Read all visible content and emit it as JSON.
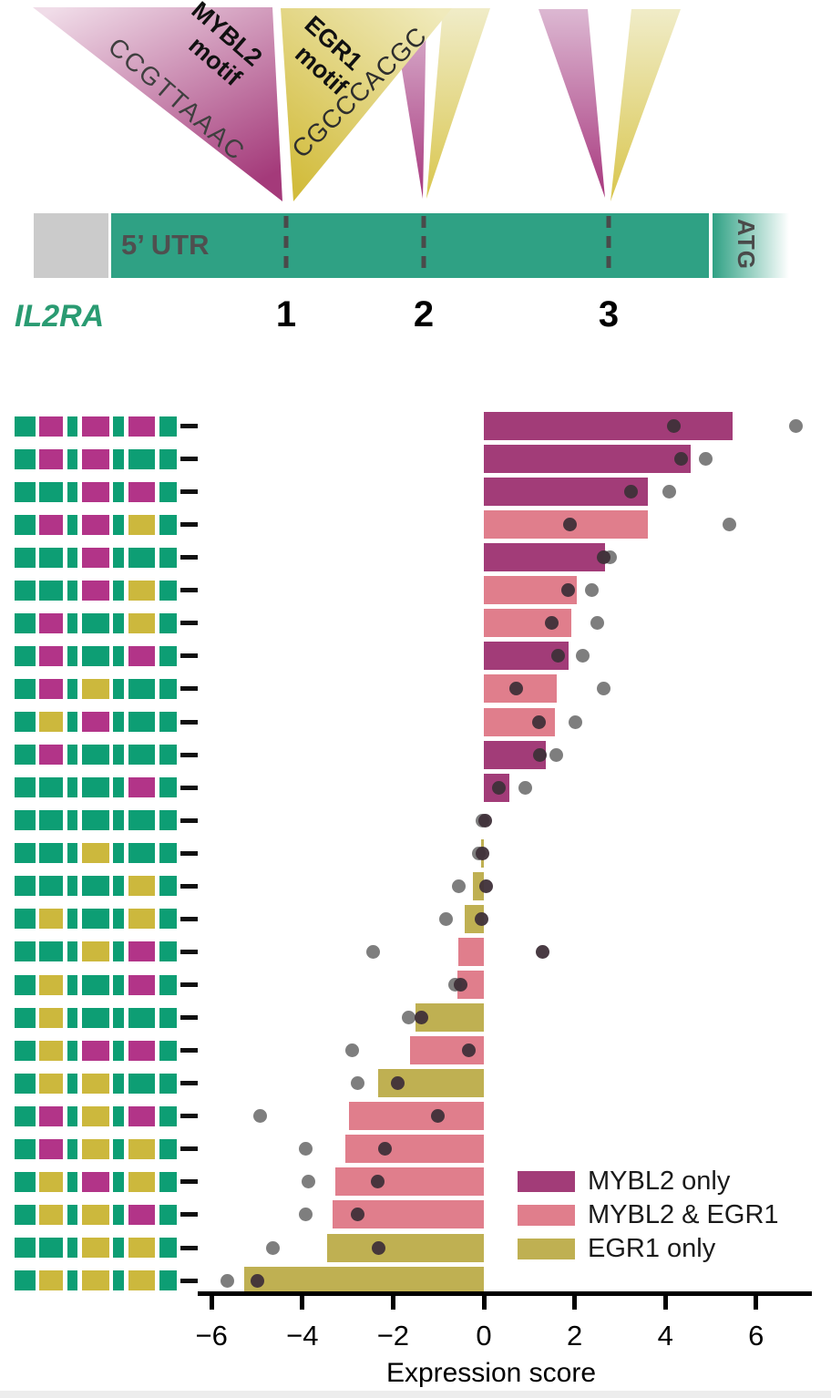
{
  "gene_diagram": {
    "gene_label": "IL2RA",
    "utr_label": "5’ UTR",
    "atg_label": "ATG",
    "positions": [
      "1",
      "2",
      "3"
    ],
    "mybl2_motif": {
      "line1": "MYBL2",
      "line2": "motif",
      "sequence": "CCGTTAAAC"
    },
    "egr1_motif": {
      "line1": "EGR1",
      "line2": "motif",
      "sequence": "CGCCCACGC"
    },
    "colors": {
      "utr_green": "#2fa184",
      "upstream_gray": "#cbcbcb",
      "dash_gray": "#4a4a4a",
      "label_gray": "#4f4f4f",
      "gene_green": "#2a9b72",
      "mybl2_light": "#f0dce8",
      "mybl2_dark": "#a43a7a",
      "egr1_light": "#f0eabc",
      "egr1_dark": "#d2bc3c"
    }
  },
  "chart_data": {
    "type": "bar",
    "orientation": "horizontal",
    "xlabel": "Expression score",
    "xlim": [
      -6.3,
      7.2
    ],
    "x_ticks": [
      -6,
      -4,
      -2,
      0,
      2,
      4,
      6
    ],
    "grid": false,
    "legend_position": "bottom-right",
    "legend": [
      {
        "label": "MYBL2 only",
        "color": "#a23c78"
      },
      {
        "label": "MYBL2 & EGR1",
        "color": "#e07e8c"
      },
      {
        "label": "EGR1 only",
        "color": "#bfb052"
      }
    ],
    "glyph_colors": {
      "G": "#0d9e74",
      "M": "#b23488",
      "Y": "#ccb83d"
    },
    "dot_colors": {
      "dark": "#3f3039",
      "gray": "#777777"
    },
    "rows": [
      {
        "pattern": [
          "M",
          "M",
          "M"
        ],
        "category": "MYBL2 only",
        "bar": 5.48,
        "dots": {
          "dark": 4.18,
          "gray": 6.87
        }
      },
      {
        "pattern": [
          "M",
          "M",
          "G"
        ],
        "category": "MYBL2 only",
        "bar": 4.56,
        "dots": {
          "dark": 4.35,
          "gray": 4.88
        }
      },
      {
        "pattern": [
          "G",
          "M",
          "M"
        ],
        "category": "MYBL2 only",
        "bar": 3.62,
        "dots": {
          "dark": 3.25,
          "gray": 4.09
        }
      },
      {
        "pattern": [
          "M",
          "M",
          "Y"
        ],
        "category": "MYBL2 & EGR1",
        "bar": 3.61,
        "dots": {
          "dark": 1.9,
          "gray": 5.41
        }
      },
      {
        "pattern": [
          "G",
          "M",
          "G"
        ],
        "category": "MYBL2 only",
        "bar": 2.67,
        "dots": {
          "dark": 2.64,
          "gray": 2.78
        }
      },
      {
        "pattern": [
          "G",
          "M",
          "Y"
        ],
        "category": "MYBL2 & EGR1",
        "bar": 2.05,
        "dots": {
          "dark": 1.85,
          "gray": 2.37
        }
      },
      {
        "pattern": [
          "M",
          "G",
          "Y"
        ],
        "category": "MYBL2 & EGR1",
        "bar": 1.93,
        "dots": {
          "dark": 1.5,
          "gray": 2.49
        }
      },
      {
        "pattern": [
          "M",
          "G",
          "M"
        ],
        "category": "MYBL2 only",
        "bar": 1.86,
        "dots": {
          "dark": 1.63,
          "gray": 2.18
        }
      },
      {
        "pattern": [
          "M",
          "Y",
          "G"
        ],
        "category": "MYBL2 & EGR1",
        "bar": 1.61,
        "dots": {
          "dark": 0.72,
          "gray": 2.64
        }
      },
      {
        "pattern": [
          "Y",
          "M",
          "G"
        ],
        "category": "MYBL2 & EGR1",
        "bar": 1.57,
        "dots": {
          "dark": 1.22,
          "gray": 2.02
        }
      },
      {
        "pattern": [
          "M",
          "G",
          "G"
        ],
        "category": "MYBL2 only",
        "bar": 1.36,
        "dots": {
          "dark": 1.23,
          "gray": 1.59
        }
      },
      {
        "pattern": [
          "G",
          "G",
          "M"
        ],
        "category": "MYBL2 only",
        "bar": 0.57,
        "dots": {
          "dark": 0.33,
          "gray": 0.92
        }
      },
      {
        "pattern": [
          "G",
          "G",
          "G"
        ],
        "category": "none",
        "bar": 0.02,
        "dots": {
          "dark": 0.03,
          "gray": -0.03
        }
      },
      {
        "pattern": [
          "G",
          "Y",
          "G"
        ],
        "category": "EGR1 only",
        "bar": -0.06,
        "dots": {
          "dark": -0.03,
          "gray": -0.12
        }
      },
      {
        "pattern": [
          "G",
          "G",
          "Y"
        ],
        "category": "EGR1 only",
        "bar": -0.25,
        "dots": {
          "dark": 0.05,
          "gray": -0.56
        }
      },
      {
        "pattern": [
          "Y",
          "G",
          "Y"
        ],
        "category": "EGR1 only",
        "bar": -0.42,
        "dots": {
          "dark": -0.05,
          "gray": -0.84
        }
      },
      {
        "pattern": [
          "G",
          "Y",
          "M"
        ],
        "category": "MYBL2 & EGR1",
        "bar": -0.56,
        "dots": {
          "dark": 1.3,
          "gray": -2.44
        }
      },
      {
        "pattern": [
          "Y",
          "G",
          "M"
        ],
        "category": "MYBL2 & EGR1",
        "bar": -0.58,
        "dots": {
          "dark": -0.52,
          "gray": -0.64
        }
      },
      {
        "pattern": [
          "Y",
          "G",
          "G"
        ],
        "category": "EGR1 only",
        "bar": -1.5,
        "dots": {
          "dark": -1.37,
          "gray": -1.66
        }
      },
      {
        "pattern": [
          "Y",
          "M",
          "M"
        ],
        "category": "MYBL2 & EGR1",
        "bar": -1.62,
        "dots": {
          "dark": -0.34,
          "gray": -2.9
        }
      },
      {
        "pattern": [
          "Y",
          "Y",
          "G"
        ],
        "category": "EGR1 only",
        "bar": -2.33,
        "dots": {
          "dark": -1.89,
          "gray": -2.78
        }
      },
      {
        "pattern": [
          "M",
          "Y",
          "M"
        ],
        "category": "MYBL2 & EGR1",
        "bar": -2.97,
        "dots": {
          "dark": -1.02,
          "gray": -4.93
        }
      },
      {
        "pattern": [
          "M",
          "Y",
          "Y"
        ],
        "category": "MYBL2 & EGR1",
        "bar": -3.05,
        "dots": {
          "dark": -2.18,
          "gray": -3.92
        }
      },
      {
        "pattern": [
          "Y",
          "M",
          "Y"
        ],
        "category": "MYBL2 & EGR1",
        "bar": -3.28,
        "dots": {
          "dark": -2.33,
          "gray": -3.87
        }
      },
      {
        "pattern": [
          "Y",
          "Y",
          "M"
        ],
        "category": "MYBL2 & EGR1",
        "bar": -3.33,
        "dots": {
          "dark": -2.78,
          "gray": -3.92
        }
      },
      {
        "pattern": [
          "G",
          "Y",
          "Y"
        ],
        "category": "EGR1 only",
        "bar": -3.45,
        "dots": {
          "dark": -2.31,
          "gray": -4.64
        }
      },
      {
        "pattern": [
          "Y",
          "Y",
          "Y"
        ],
        "category": "EGR1 only",
        "bar": -5.28,
        "dots": {
          "dark": -4.98,
          "gray": -5.66
        }
      }
    ]
  }
}
